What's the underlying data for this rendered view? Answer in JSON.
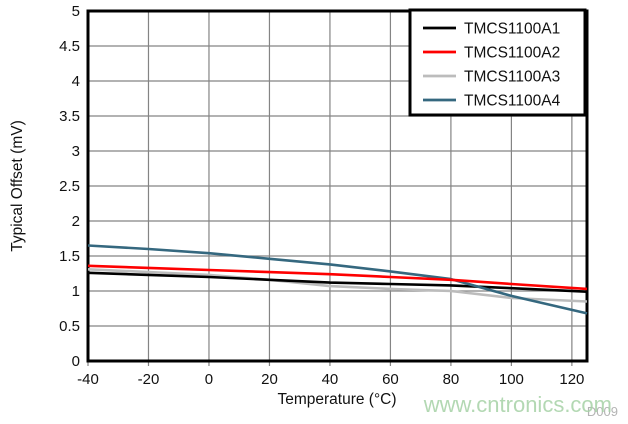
{
  "watermark": {
    "text": "www.cntronics.com",
    "color": "#a6d2a6",
    "code": "D009",
    "code_color": "#b4b4b4"
  },
  "chart_data": {
    "type": "line",
    "title": "",
    "xlabel": "Temperature (°C)",
    "ylabel": "Typical Offset (mV)",
    "xlim": [
      -40,
      125
    ],
    "ylim": [
      0,
      5
    ],
    "x_ticks": [
      -40,
      -20,
      0,
      20,
      40,
      60,
      80,
      100,
      120
    ],
    "y_ticks": [
      0,
      0.5,
      1,
      1.5,
      2,
      2.5,
      3,
      3.5,
      4,
      4.5,
      5
    ],
    "grid": true,
    "gridline_color": "#848484",
    "border_color": "#000000",
    "legend_position": "top-right",
    "x": [
      -40,
      -20,
      0,
      20,
      40,
      60,
      80,
      100,
      125
    ],
    "series": [
      {
        "name": "TMCS1100A1",
        "color": "#000000",
        "values": [
          1.26,
          1.23,
          1.2,
          1.16,
          1.12,
          1.1,
          1.08,
          1.04,
          0.99
        ]
      },
      {
        "name": "TMCS1100A2",
        "color": "#fe0000",
        "values": [
          1.36,
          1.33,
          1.3,
          1.27,
          1.24,
          1.2,
          1.16,
          1.1,
          1.03
        ]
      },
      {
        "name": "TMCS1100A3",
        "color": "#bcbcbc",
        "values": [
          1.31,
          1.27,
          1.23,
          1.16,
          1.07,
          1.03,
          1.0,
          0.9,
          0.85
        ]
      },
      {
        "name": "TMCS1100A4",
        "color": "#35687f",
        "values": [
          1.65,
          1.6,
          1.54,
          1.46,
          1.38,
          1.28,
          1.17,
          0.93,
          0.68
        ]
      }
    ]
  }
}
